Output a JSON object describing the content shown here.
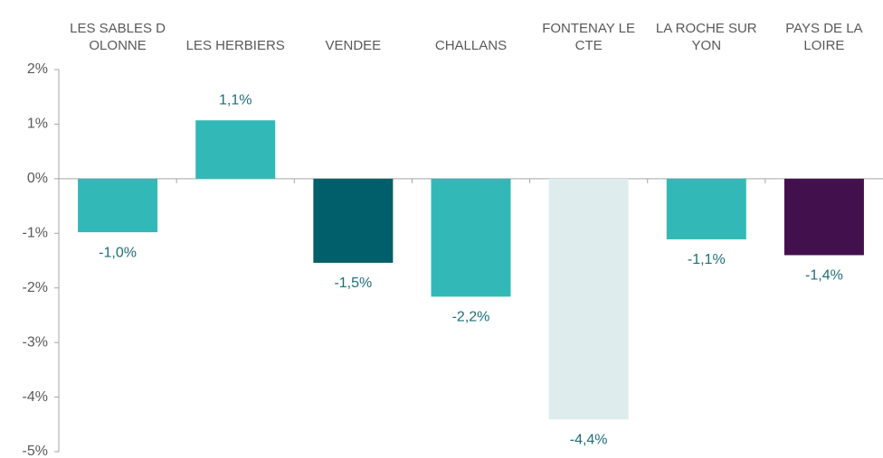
{
  "chart_data": {
    "type": "bar",
    "categories": [
      "LES SABLES D OLONNE",
      "LES HERBIERS",
      "VENDEE",
      "CHALLANS",
      "FONTENAY LE CTE",
      "LA ROCHE SUR YON",
      "PAYS DE LA LOIRE"
    ],
    "values": [
      -0.98,
      1.07,
      -1.54,
      -2.16,
      -4.41,
      -1.11,
      -1.4
    ],
    "value_labels": [
      "-1,0%",
      "1,1%",
      "-1,5%",
      "-2,2%",
      "-4,4%",
      "-1,1%",
      "-1,4%"
    ],
    "colors": [
      "#33b8b8",
      "#33b8b8",
      "#005f6a",
      "#33b8b8",
      "#deecee",
      "#33b8b8",
      "#43104e"
    ],
    "ylim": [
      -5,
      2
    ],
    "yticks": [
      {
        "value": -5,
        "label": "-5%"
      },
      {
        "value": -4,
        "label": "-4%"
      },
      {
        "value": -3,
        "label": "-3%"
      },
      {
        "value": -2,
        "label": "-2%"
      },
      {
        "value": -1,
        "label": "-1%"
      },
      {
        "value": 0,
        "label": "0%"
      },
      {
        "value": 1,
        "label": "1%"
      },
      {
        "value": 2,
        "label": "2%"
      }
    ]
  }
}
